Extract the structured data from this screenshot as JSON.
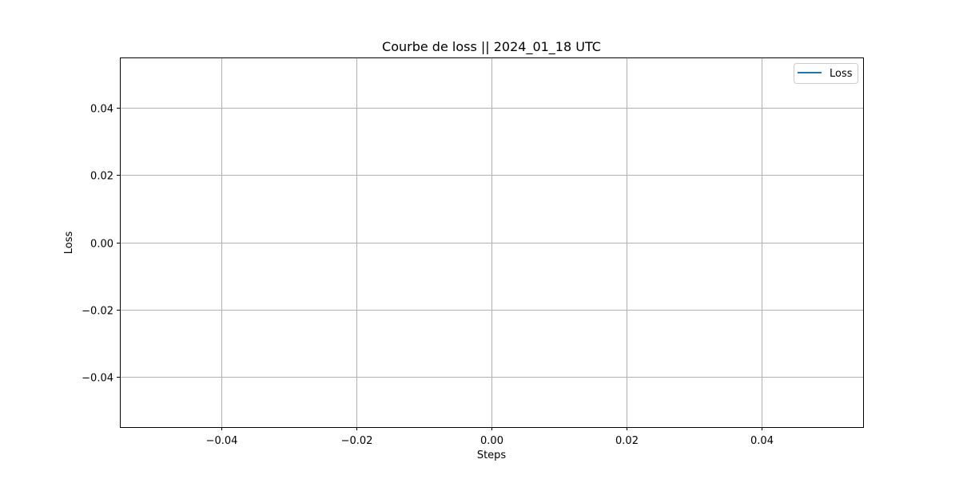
{
  "chart_data": {
    "type": "line",
    "title": "Courbe de loss  ||  2024_01_18 UTC",
    "xlabel": "Steps",
    "ylabel": "Loss",
    "xlim": [
      -0.055,
      0.055
    ],
    "ylim": [
      -0.055,
      0.055
    ],
    "xticks": [
      -0.04,
      -0.02,
      0.0,
      0.02,
      0.04
    ],
    "yticks": [
      -0.04,
      -0.02,
      0.0,
      0.02,
      0.04
    ],
    "xtick_labels": [
      "−0.04",
      "−0.02",
      "0.00",
      "0.02",
      "0.04"
    ],
    "ytick_labels": [
      "−0.04",
      "−0.02",
      "0.00",
      "0.02",
      "0.04"
    ],
    "grid": true,
    "legend_position": "upper right",
    "series": [
      {
        "name": "Loss",
        "color": "#1f77b4",
        "x": [],
        "y": []
      }
    ]
  }
}
